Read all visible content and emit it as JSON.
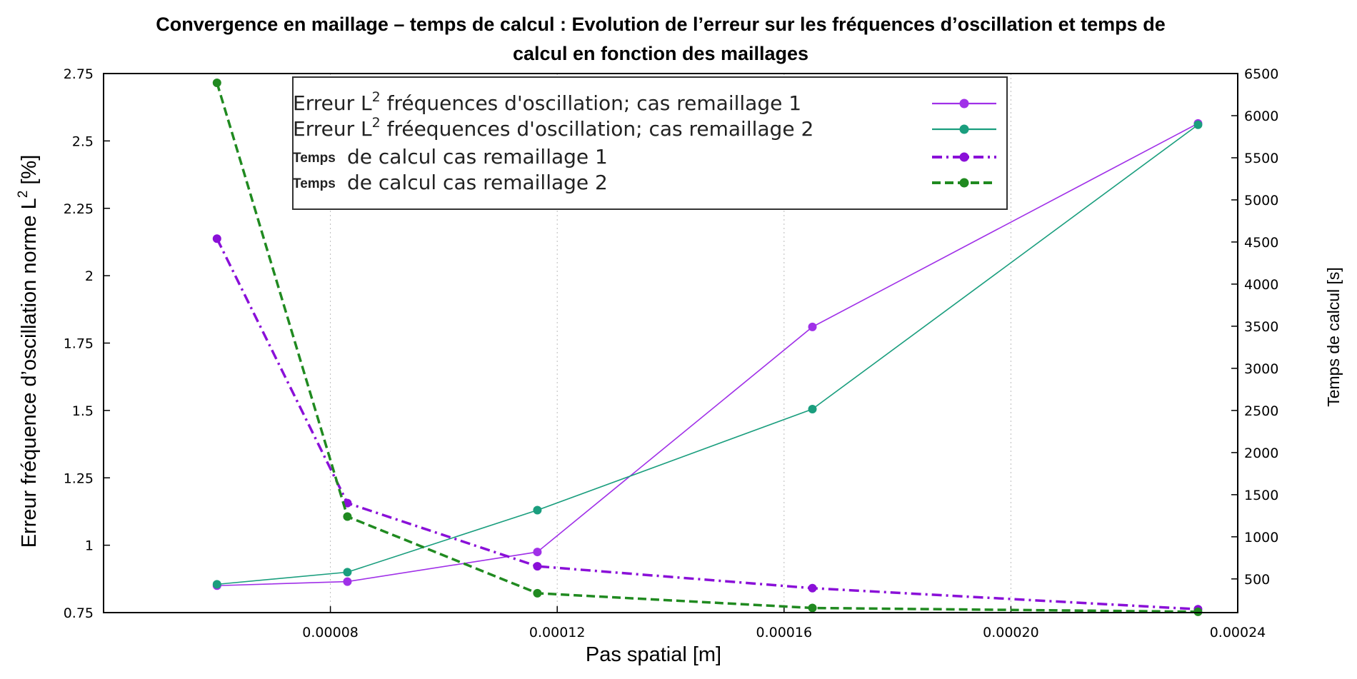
{
  "chart_data": {
    "type": "line",
    "title_line1": "Convergence en maillage – temps de calcul : Evolution de l’erreur sur les fréquences d’oscillation et temps de",
    "title_line2": "calcul en fonction des maillages",
    "xlabel": "Pas spatial [m]",
    "ylabel_left": "Erreur fréquence d’oscillation norme L",
    "ylabel_left_sup": "2",
    "ylabel_left_suffix": " [%]",
    "ylabel_right": "Temps de calcul [s]",
    "xlim": [
      4e-05,
      0.00024
    ],
    "ylim_left": [
      0.75,
      2.75
    ],
    "ylim_right": [
      100,
      6500
    ],
    "x_ticks": [
      "0.00008",
      "0.00012",
      "0.00016",
      "0.00020",
      "0.00024"
    ],
    "y_left_ticks": [
      "0.75",
      "1",
      "1.25",
      "1.5",
      "1.75",
      "2",
      "2.25",
      "2.5",
      "2.75"
    ],
    "y_right_ticks": [
      "500",
      "1000",
      "1500",
      "2000",
      "2500",
      "3000",
      "3500",
      "4000",
      "4500",
      "5000",
      "5500",
      "6000",
      "6500"
    ],
    "grid": true,
    "legend_position": "top-center",
    "series": [
      {
        "name_pre": "Erreur L",
        "name_sup": "2",
        "name_post": " fréquences d'oscillation; cas remaillage 1",
        "axis": "left",
        "color": "#a030e8",
        "style": "solid",
        "x": [
          6e-05,
          8.3e-05,
          0.0001165,
          0.000165,
          0.000233
        ],
        "values": [
          0.85,
          0.865,
          0.975,
          1.81,
          2.565
        ]
      },
      {
        "name_pre": "Erreur L",
        "name_sup": "2",
        "name_post": " fréequences d'oscillation; cas remaillage 2",
        "axis": "left",
        "color": "#1a9e7e",
        "style": "solid",
        "x": [
          6e-05,
          8.3e-05,
          0.0001165,
          0.000165,
          0.000233
        ],
        "values": [
          0.855,
          0.9,
          1.13,
          1.505,
          2.56
        ]
      },
      {
        "name_pre": "Temps",
        "name_post": "de calcul cas remaillage 1",
        "axis": "right",
        "color": "#8a10d8",
        "style": "dashdot",
        "x": [
          6e-05,
          8.3e-05,
          0.0001165,
          0.000165,
          0.000233
        ],
        "values": [
          4540,
          1400,
          650,
          390,
          140
        ]
      },
      {
        "name_pre": "Temps",
        "name_post": "de calcul cas remaillage 2",
        "axis": "right",
        "color": "#208a20",
        "style": "dashed",
        "x": [
          6e-05,
          8.3e-05,
          0.0001165,
          0.000165,
          0.000233
        ],
        "values": [
          6390,
          1240,
          330,
          155,
          110
        ]
      }
    ]
  }
}
